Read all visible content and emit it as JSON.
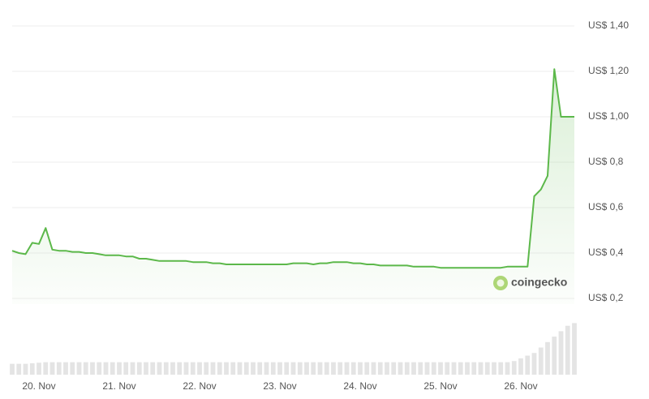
{
  "chart_data": {
    "type": "line",
    "values": [
      0.41,
      0.4,
      0.395,
      0.445,
      0.44,
      0.51,
      0.415,
      0.41,
      0.41,
      0.405,
      0.405,
      0.4,
      0.4,
      0.395,
      0.39,
      0.39,
      0.39,
      0.385,
      0.385,
      0.375,
      0.375,
      0.37,
      0.365,
      0.365,
      0.365,
      0.365,
      0.365,
      0.36,
      0.36,
      0.36,
      0.355,
      0.355,
      0.35,
      0.35,
      0.35,
      0.35,
      0.35,
      0.35,
      0.35,
      0.35,
      0.35,
      0.35,
      0.355,
      0.355,
      0.355,
      0.35,
      0.355,
      0.355,
      0.36,
      0.36,
      0.36,
      0.355,
      0.355,
      0.35,
      0.35,
      0.345,
      0.345,
      0.345,
      0.345,
      0.345,
      0.34,
      0.34,
      0.34,
      0.34,
      0.335,
      0.335,
      0.335,
      0.335,
      0.335,
      0.335,
      0.335,
      0.335,
      0.335,
      0.335,
      0.34,
      0.34,
      0.34,
      0.34,
      0.65,
      0.68,
      0.74,
      1.21,
      1.0,
      1.0,
      1.0
    ],
    "color": "#5cb84a",
    "xlim": [
      0,
      84
    ],
    "xticks": [
      {
        "value": 4,
        "label": "20. Nov"
      },
      {
        "value": 16,
        "label": "21. Nov"
      },
      {
        "value": 28,
        "label": "22. Nov"
      },
      {
        "value": 40,
        "label": "23. Nov"
      },
      {
        "value": 52,
        "label": "24. Nov"
      },
      {
        "value": 64,
        "label": "25. Nov"
      },
      {
        "value": 76,
        "label": "26. Nov"
      }
    ],
    "ylim": [
      0.2,
      1.4
    ],
    "yticks": [
      {
        "value": 0.2,
        "label": "US$ 0,2"
      },
      {
        "value": 0.4,
        "label": "US$ 0,4"
      },
      {
        "value": 0.6,
        "label": "US$ 0,6"
      },
      {
        "value": 0.8,
        "label": "US$ 0,8"
      },
      {
        "value": 1.0,
        "label": "US$ 1,00"
      },
      {
        "value": 1.2,
        "label": "US$ 1,20"
      },
      {
        "value": 1.4,
        "label": "US$ 1,40"
      }
    ],
    "grid": true,
    "watermark": "coingecko",
    "volume": {
      "color": "#e4e4e4",
      "ylim": [
        0,
        10
      ],
      "values": [
        2,
        2,
        2,
        2.1,
        2.2,
        2.3,
        2.3,
        2.3,
        2.3,
        2.3,
        2.3,
        2.3,
        2.3,
        2.3,
        2.3,
        2.3,
        2.3,
        2.3,
        2.3,
        2.3,
        2.3,
        2.3,
        2.3,
        2.3,
        2.3,
        2.3,
        2.3,
        2.3,
        2.3,
        2.3,
        2.3,
        2.3,
        2.3,
        2.3,
        2.3,
        2.3,
        2.3,
        2.3,
        2.3,
        2.3,
        2.3,
        2.3,
        2.3,
        2.3,
        2.3,
        2.3,
        2.3,
        2.3,
        2.3,
        2.3,
        2.3,
        2.3,
        2.3,
        2.3,
        2.3,
        2.3,
        2.3,
        2.3,
        2.3,
        2.3,
        2.3,
        2.3,
        2.3,
        2.3,
        2.3,
        2.3,
        2.3,
        2.3,
        2.3,
        2.3,
        2.3,
        2.3,
        2.3,
        2.3,
        2.3,
        2.5,
        3,
        3.5,
        4,
        5,
        6,
        7,
        8,
        9,
        9.5
      ]
    }
  }
}
